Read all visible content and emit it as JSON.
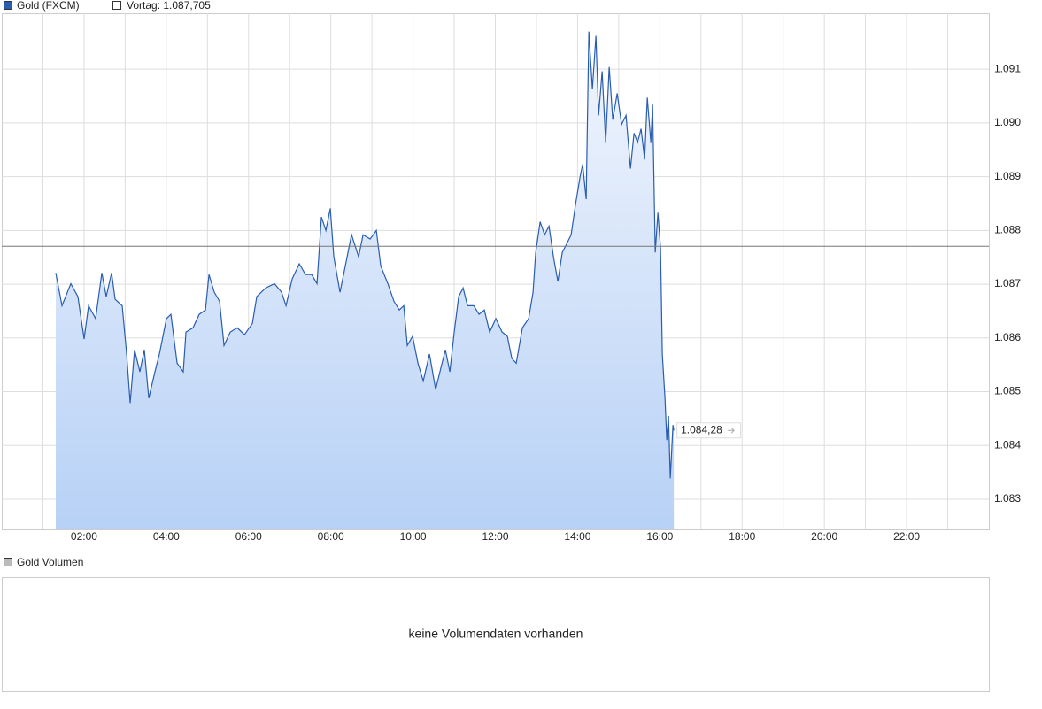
{
  "chart_data": {
    "type": "area",
    "x": [
      1.313,
      1.464,
      1.679,
      1.851,
      2.002,
      2.11,
      2.282,
      2.433,
      2.54,
      2.67,
      2.756,
      2.928,
      3.036,
      3.122,
      3.229,
      3.358,
      3.466,
      3.574,
      3.724,
      3.832,
      4.004,
      4.112,
      4.263,
      4.413,
      4.478,
      4.65,
      4.801,
      4.952,
      5.038,
      5.167,
      5.296,
      5.404,
      5.555,
      5.727,
      5.899,
      6.093,
      6.2,
      6.416,
      6.631,
      6.803,
      6.911,
      7.062,
      7.234,
      7.384,
      7.535,
      7.664,
      7.772,
      7.88,
      7.987,
      8.073,
      8.224,
      8.353,
      8.504,
      8.676,
      8.784,
      8.956,
      9.107,
      9.214,
      9.387,
      9.537,
      9.666,
      9.774,
      9.86,
      9.989,
      10.119,
      10.248,
      10.399,
      10.549,
      10.678,
      10.786,
      10.894,
      11.001,
      11.109,
      11.217,
      11.324,
      11.475,
      11.604,
      11.733,
      11.862,
      12.013,
      12.164,
      12.293,
      12.401,
      12.508,
      12.659,
      12.81,
      12.917,
      12.982,
      13.09,
      13.198,
      13.305,
      13.413,
      13.521,
      13.628,
      13.736,
      13.843,
      13.951,
      14.059,
      14.123,
      14.209,
      14.274,
      14.36,
      14.446,
      14.511,
      14.597,
      14.683,
      14.769,
      14.855,
      14.963,
      15.07,
      15.178,
      15.286,
      15.372,
      15.458,
      15.544,
      15.63,
      15.695,
      15.781,
      15.824,
      15.888,
      15.953,
      16.017,
      16.06,
      16.125,
      16.168,
      16.211,
      16.254,
      16.319,
      16.34
    ],
    "series": [
      {
        "name": "Gold (FXCM)",
        "color": "#2a5db0",
        "values": [
          1.08721,
          1.0866,
          1.08701,
          1.08677,
          1.08598,
          1.0866,
          1.08636,
          1.08721,
          1.08677,
          1.08721,
          1.08672,
          1.0866,
          1.0857,
          1.08479,
          1.08578,
          1.08537,
          1.08578,
          1.08488,
          1.08537,
          1.0857,
          1.08636,
          1.08644,
          1.08553,
          1.08537,
          1.08611,
          1.08619,
          1.08644,
          1.08652,
          1.08718,
          1.08685,
          1.08668,
          1.08586,
          1.08611,
          1.08619,
          1.08606,
          1.08627,
          1.08677,
          1.08693,
          1.08701,
          1.08685,
          1.0866,
          1.0871,
          1.08738,
          1.08718,
          1.08718,
          1.08701,
          1.08825,
          1.088,
          1.08841,
          1.08751,
          1.08685,
          1.08734,
          1.08792,
          1.08751,
          1.08792,
          1.08784,
          1.088,
          1.08734,
          1.08701,
          1.08668,
          1.08652,
          1.0866,
          1.08586,
          1.08603,
          1.08553,
          1.0852,
          1.0857,
          1.08504,
          1.08545,
          1.08578,
          1.08537,
          1.08611,
          1.08677,
          1.08693,
          1.0866,
          1.0866,
          1.08644,
          1.08652,
          1.08611,
          1.08636,
          1.08611,
          1.08603,
          1.08562,
          1.08553,
          1.08619,
          1.08636,
          1.08685,
          1.08759,
          1.08816,
          1.08792,
          1.08808,
          1.08751,
          1.08705,
          1.08759,
          1.08775,
          1.08792,
          1.08849,
          1.08899,
          1.08923,
          1.08858,
          1.0917,
          1.09063,
          1.09162,
          1.09014,
          1.09096,
          1.08964,
          1.09104,
          1.09006,
          1.09055,
          1.08997,
          1.09014,
          1.08915,
          1.08981,
          1.08964,
          1.08989,
          1.08932,
          1.09047,
          1.08964,
          1.09034,
          1.08759,
          1.08833,
          1.08767,
          1.0857,
          1.08488,
          1.0841,
          1.08455,
          1.08339,
          1.08438,
          1.08428
        ]
      }
    ],
    "reference": {
      "name": "Vortag: 1.087,705",
      "value": 1.087705,
      "color": "#777777"
    },
    "last_value": {
      "value": 1.08428,
      "label": "1.084,28"
    },
    "xlim": [
      0,
      24
    ],
    "xticks": [
      {
        "value": 2,
        "label": "02:00"
      },
      {
        "value": 4,
        "label": "04:00"
      },
      {
        "value": 6,
        "label": "06:00"
      },
      {
        "value": 8,
        "label": "08:00"
      },
      {
        "value": 10,
        "label": "10:00"
      },
      {
        "value": 12,
        "label": "12:00"
      },
      {
        "value": 14,
        "label": "14:00"
      },
      {
        "value": 16,
        "label": "16:00"
      },
      {
        "value": 18,
        "label": "18:00"
      },
      {
        "value": 20,
        "label": "20:00"
      },
      {
        "value": 22,
        "label": "22:00"
      }
    ],
    "x_minor_ticks": [
      1,
      3,
      5,
      7,
      9,
      11,
      13,
      15,
      17,
      19,
      21,
      23
    ],
    "ylim": [
      1.08244,
      1.09204
    ],
    "yticks": [
      1.083,
      1.084,
      1.085,
      1.086,
      1.087,
      1.088,
      1.089,
      {
        "value": 1.09,
        "label": "1.090"
      },
      1.091
    ],
    "grid": true,
    "volume_panel": {
      "legend": "Gold Volumen",
      "message": "keine Volumendaten vorhanden"
    }
  }
}
